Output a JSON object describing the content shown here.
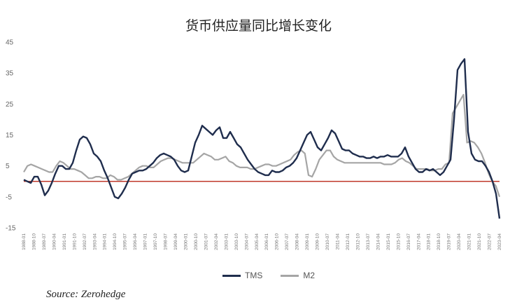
{
  "chart_data": {
    "type": "line",
    "title": "货币供应量同比增长变化",
    "source": "Source: Zerohedge",
    "ylim": [
      -15,
      45
    ],
    "yticks": [
      45,
      35,
      25,
      15,
      5,
      -5,
      -15
    ],
    "reference_line": {
      "y": 0,
      "color": "#c0392b"
    },
    "legend_position": "bottom-center",
    "grid": false,
    "x_tick_labels": [
      "1988-01",
      "1988-10",
      "1989-07",
      "1990-04",
      "1991-01",
      "1991-10",
      "1992-07",
      "1993-04",
      "1994-01",
      "1994-10",
      "1995-07",
      "1996-04",
      "1997-01",
      "1997-10",
      "1998-07",
      "1999-04",
      "2000-01",
      "2000-10",
      "2001-07",
      "2002-04",
      "2003-01",
      "2003-10",
      "2004-07",
      "2005-04",
      "2006-01",
      "2006-10",
      "2007-07",
      "2008-04",
      "2009-01",
      "2009-10",
      "2010-07",
      "2011-04",
      "2012-01",
      "2012-10",
      "2013-07",
      "2014-04",
      "2015-01",
      "2015-10",
      "2016-07",
      "2017-04",
      "2018-01",
      "2018-10",
      "2019-07",
      "2020-04",
      "2021-01",
      "2021-10",
      "2022-07",
      "2023-04"
    ],
    "series": [
      {
        "name": "TMS",
        "color": "#1f2d4d",
        "values": [
          0.5,
          0,
          -0.5,
          1.5,
          1.5,
          -1,
          -4.5,
          -3,
          -0.5,
          2.5,
          5,
          5,
          4,
          4,
          6,
          10,
          13.5,
          14.5,
          14,
          12,
          9,
          8,
          6.5,
          3.5,
          1,
          -2,
          -5,
          -5.5,
          -4,
          -2,
          0.5,
          2.5,
          3,
          3.5,
          3.5,
          4,
          5,
          6,
          7.5,
          8.5,
          9,
          8.5,
          8,
          7,
          5,
          3.5,
          3,
          3.5,
          8,
          12.5,
          15,
          18,
          17,
          16,
          15,
          16.5,
          17.5,
          14,
          14,
          16,
          14,
          12,
          11,
          9,
          7,
          5.5,
          4,
          3,
          2.5,
          2,
          2,
          3.5,
          3,
          3,
          3.5,
          4.5,
          5,
          6,
          7.5,
          10,
          12.5,
          15,
          16,
          13.5,
          11,
          10,
          12,
          14,
          16.5,
          15.5,
          13,
          10.5,
          10,
          10,
          9,
          8.5,
          8,
          8,
          7.5,
          7.5,
          8,
          7.5,
          8,
          8,
          8.5,
          8,
          8,
          8,
          9,
          11,
          8,
          6,
          4,
          3,
          3,
          4,
          3.5,
          4,
          3,
          2,
          3,
          5,
          7,
          20,
          36,
          38,
          39.5,
          16,
          9,
          7,
          6.5,
          6.5,
          5,
          3,
          0,
          -4,
          -12
        ]
      },
      {
        "name": "M2",
        "color": "#a5a5a5",
        "values": [
          3,
          5,
          5.5,
          5,
          4.5,
          4,
          3.5,
          3,
          3,
          5,
          6.5,
          6,
          5,
          4,
          4,
          3.5,
          3,
          2,
          1,
          1,
          1.5,
          1.5,
          1,
          1,
          2,
          1.5,
          0.5,
          0.5,
          1,
          1.5,
          2.5,
          3.5,
          4.5,
          5,
          5,
          4.5,
          4.5,
          5.5,
          6.5,
          7,
          7.5,
          7.5,
          7,
          6.5,
          6,
          6,
          6,
          6,
          7,
          8,
          9,
          8.5,
          8,
          7,
          7,
          7.5,
          8,
          6.5,
          6,
          5,
          4.5,
          4.5,
          4.5,
          4,
          4,
          4.5,
          5,
          5.5,
          5.5,
          5,
          5,
          5.5,
          6,
          6.5,
          7,
          8.5,
          9.5,
          10,
          9,
          2,
          1.5,
          4,
          7,
          8.5,
          10,
          10,
          8,
          7,
          6.5,
          6,
          6,
          6,
          6,
          6,
          6,
          6,
          6,
          6,
          6,
          6,
          5.5,
          5.5,
          5.5,
          6,
          7,
          7.5,
          6.5,
          6,
          5,
          4,
          4,
          4,
          4,
          3.5,
          3.5,
          4,
          4,
          5.5,
          6,
          22,
          24,
          26,
          28,
          12.5,
          13,
          12.5,
          11,
          9,
          6,
          2.5,
          0,
          -1.5,
          -5
        ]
      }
    ]
  },
  "legend": {
    "tms": "TMS",
    "m2": "M2"
  }
}
